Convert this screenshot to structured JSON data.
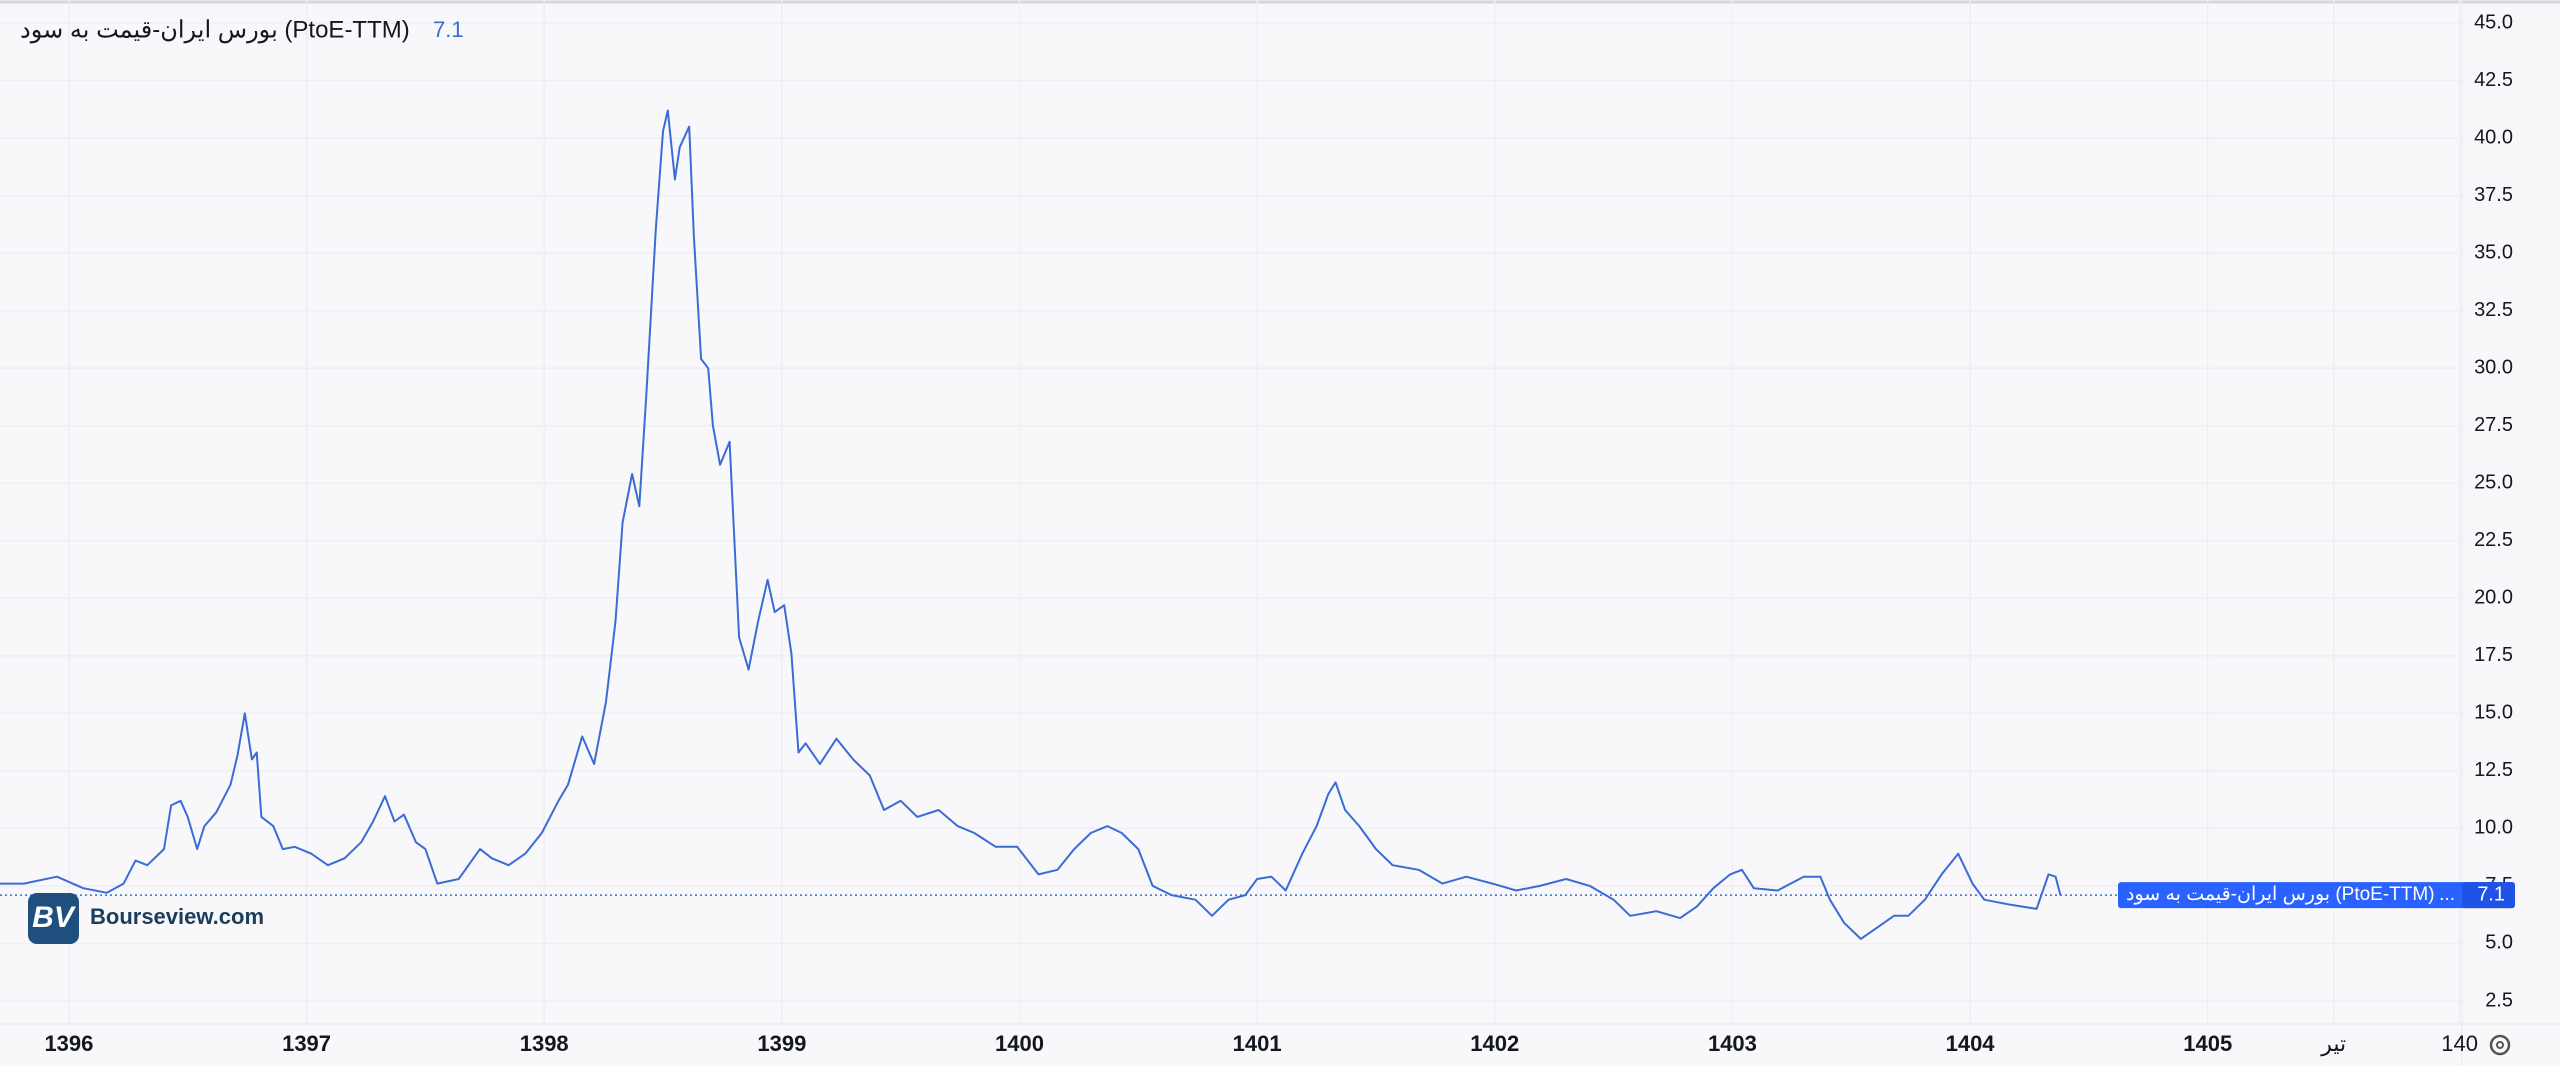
{
  "chart_data": {
    "type": "line",
    "x": [
      1395.71,
      1395.81,
      1395.95,
      1396.06,
      1396.16,
      1396.23,
      1396.28,
      1396.33,
      1396.4,
      1396.43,
      1396.47,
      1396.5,
      1396.54,
      1396.57,
      1396.62,
      1396.68,
      1396.71,
      1396.74,
      1396.77,
      1396.79,
      1396.81,
      1396.86,
      1396.9,
      1396.95,
      1397.02,
      1397.09,
      1397.16,
      1397.23,
      1397.28,
      1397.33,
      1397.37,
      1397.41,
      1397.46,
      1397.5,
      1397.55,
      1397.64,
      1397.73,
      1397.78,
      1397.85,
      1397.92,
      1397.99,
      1398.06,
      1398.1,
      1398.16,
      1398.21,
      1398.26,
      1398.3,
      1398.33,
      1398.37,
      1398.4,
      1398.43,
      1398.47,
      1398.5,
      1398.52,
      1398.55,
      1398.57,
      1398.61,
      1398.63,
      1398.66,
      1398.69,
      1398.71,
      1398.74,
      1398.78,
      1398.8,
      1398.82,
      1398.86,
      1398.9,
      1398.94,
      1398.97,
      1399.01,
      1399.04,
      1399.07,
      1399.1,
      1399.16,
      1399.23,
      1399.3,
      1399.37,
      1399.43,
      1399.5,
      1399.57,
      1399.66,
      1399.74,
      1399.81,
      1399.9,
      1399.99,
      1400.08,
      1400.16,
      1400.23,
      1400.3,
      1400.37,
      1400.43,
      1400.5,
      1400.56,
      1400.64,
      1400.74,
      1400.81,
      1400.88,
      1400.95,
      1401.0,
      1401.06,
      1401.12,
      1401.19,
      1401.25,
      1401.3,
      1401.33,
      1401.37,
      1401.43,
      1401.5,
      1401.57,
      1401.68,
      1401.78,
      1401.88,
      1401.99,
      1402.09,
      1402.19,
      1402.3,
      1402.4,
      1402.5,
      1402.57,
      1402.68,
      1402.78,
      1402.85,
      1402.92,
      1402.99,
      1403.04,
      1403.09,
      1403.19,
      1403.3,
      1403.37,
      1403.41,
      1403.47,
      1403.54,
      1403.61,
      1403.68,
      1403.74,
      1403.81,
      1403.88,
      1403.95,
      1404.01,
      1404.06,
      1404.16,
      1404.28,
      1404.33,
      1404.36,
      1404.38
    ],
    "series": [
      {
        "name": "بورس ایران-قیمت به سود (PtoE-TTM)",
        "color": "#3b6bd6",
        "values": [
          7.6,
          7.6,
          7.9,
          7.4,
          7.2,
          7.6,
          8.6,
          8.4,
          9.1,
          11.0,
          11.2,
          10.5,
          9.1,
          10.1,
          10.7,
          11.9,
          13.2,
          15.0,
          13.0,
          13.3,
          10.5,
          10.1,
          9.1,
          9.2,
          8.9,
          8.4,
          8.7,
          9.4,
          10.3,
          11.4,
          10.3,
          10.6,
          9.4,
          9.1,
          7.6,
          7.8,
          9.1,
          8.7,
          8.4,
          8.9,
          9.8,
          11.2,
          11.9,
          14.0,
          12.8,
          15.5,
          19.0,
          23.3,
          25.4,
          24.0,
          28.9,
          36.1,
          40.3,
          41.2,
          38.2,
          39.6,
          40.5,
          35.7,
          30.4,
          30.0,
          27.5,
          25.8,
          26.8,
          22.6,
          18.3,
          16.9,
          19.0,
          20.8,
          19.4,
          19.7,
          17.6,
          13.3,
          13.7,
          12.8,
          13.9,
          13.0,
          12.3,
          10.8,
          11.2,
          10.5,
          10.8,
          10.1,
          9.8,
          9.2,
          9.2,
          8.0,
          8.2,
          9.1,
          9.8,
          10.1,
          9.8,
          9.1,
          7.5,
          7.1,
          6.9,
          6.2,
          6.9,
          7.1,
          7.8,
          7.9,
          7.3,
          8.9,
          10.1,
          11.5,
          12.0,
          10.8,
          10.1,
          9.1,
          8.4,
          8.2,
          7.6,
          7.9,
          7.6,
          7.3,
          7.5,
          7.8,
          7.5,
          6.9,
          6.2,
          6.4,
          6.1,
          6.6,
          7.4,
          8.0,
          8.2,
          7.4,
          7.3,
          7.9,
          7.9,
          6.9,
          5.9,
          5.2,
          5.7,
          6.2,
          6.2,
          6.9,
          8.0,
          8.9,
          7.6,
          6.9,
          6.7,
          6.5,
          8.0,
          7.9,
          7.1
        ]
      }
    ],
    "xlim": [
      1395.71,
      1406.07
    ],
    "xticks": [
      1396,
      1397,
      1398,
      1399,
      1400,
      1401,
      1402,
      1403,
      1404,
      1405,
      {
        "value": 1405.53,
        "label": "تیر"
      },
      {
        "value": 1406.06,
        "label": "140"
      }
    ],
    "ylim": [
      1.5,
      46.0
    ],
    "yticks": [
      2.5,
      {
        "value": 5,
        "label": "5.0"
      },
      7.5,
      {
        "value": 10,
        "label": "10.0"
      },
      12.5,
      {
        "value": 15,
        "label": "15.0"
      },
      17.5,
      {
        "value": 20,
        "label": "20.0"
      },
      22.5,
      {
        "value": 25,
        "label": "25.0"
      },
      27.5,
      {
        "value": 30,
        "label": "30.0"
      },
      32.5,
      {
        "value": 35,
        "label": "35.0"
      },
      37.5,
      {
        "value": 40,
        "label": "40.0"
      },
      42.5,
      {
        "value": 45,
        "label": "45.0"
      }
    ],
    "grid": true,
    "label_overflow": "...",
    "watermark": "Bourseview.com",
    "logo_text": "BV"
  }
}
